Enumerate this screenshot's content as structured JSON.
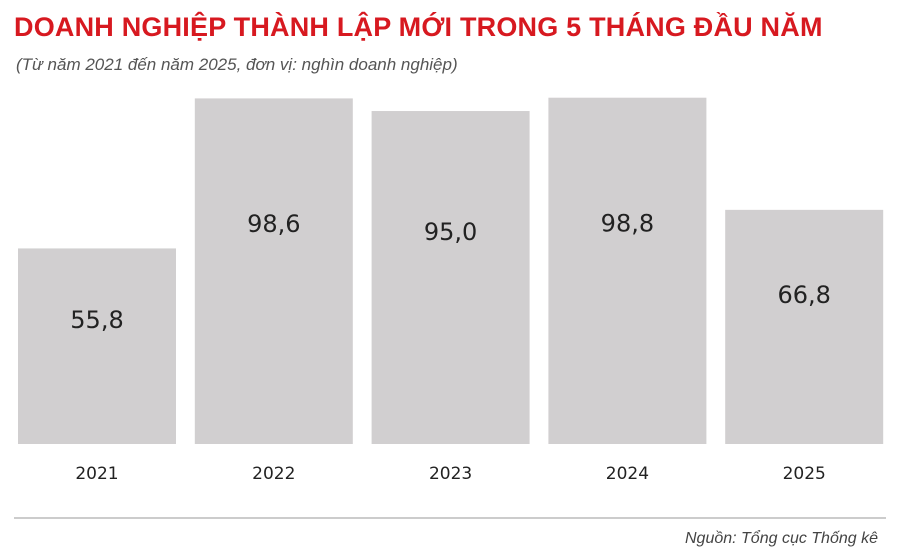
{
  "chart_data": {
    "type": "bar",
    "title": "DOANH NGHIỆP THÀNH LẬP MỚI TRONG 5 THÁNG ĐẦU NĂM",
    "subtitle": "(Từ năm 2021 đến năm 2025, đơn vị: nghìn doanh nghiệp)",
    "categories": [
      "2021",
      "2022",
      "2023",
      "2024",
      "2025"
    ],
    "values": [
      55.8,
      98.6,
      95.0,
      98.8,
      66.8
    ],
    "value_labels": [
      "55,8",
      "98,6",
      "95,0",
      "98,8",
      "66,8"
    ],
    "ylim": [
      0,
      100
    ],
    "grid": false,
    "source": "Nguồn: Tổng cục Thống kê",
    "colors": {
      "title": "#d71920",
      "bar": "#d1cfd0"
    }
  }
}
